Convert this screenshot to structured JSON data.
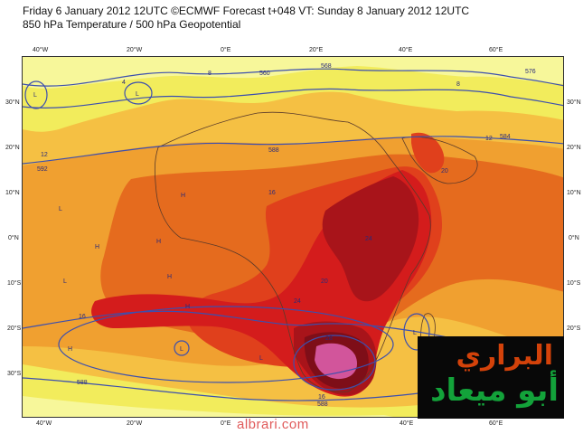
{
  "header": {
    "line1": "Friday 6 January 2012 12UTC ©ECMWF Forecast t+048 VT: Sunday 8 January 2012 12UTC",
    "line2": "850 hPa Temperature / 500 hPa Geopotential"
  },
  "axes": {
    "longitudes": [
      "40°W",
      "20°W",
      "0°E",
      "20°E",
      "40°E",
      "60°E"
    ],
    "latitudes": [
      "30°N",
      "20°N",
      "10°N",
      "0°N",
      "10°S",
      "20°S",
      "30°S"
    ]
  },
  "contour_labels": {
    "temperature": [
      "4",
      "8",
      "8",
      "12",
      "12",
      "16",
      "16",
      "16",
      "20",
      "20",
      "24",
      "24",
      "28",
      "12",
      "16",
      "16",
      "16",
      "20",
      "20",
      "24"
    ],
    "geopotential": [
      "588",
      "576",
      "568",
      "560",
      "584",
      "576",
      "568",
      "588",
      "592",
      "584",
      "576",
      "588"
    ]
  },
  "pressure_marks": [
    "L",
    "L",
    "H",
    "H",
    "H",
    "L",
    "L",
    "H",
    "H",
    "L",
    "L",
    "L",
    "H"
  ],
  "footer": {
    "url": "albrari.com"
  },
  "logo": {
    "line1": "البراري",
    "line2": "أبو ميعاد"
  },
  "colors": {
    "cold_yellow": "#f7f79a",
    "yellow": "#f2ec5c",
    "light_orange": "#f5c043",
    "orange": "#f0a030",
    "dark_orange": "#e56b1e",
    "red_orange": "#e0401c",
    "red": "#d41c1c",
    "dark_red": "#a8141a",
    "maroon": "#7e0e18",
    "magenta": "#d2559b",
    "contour_blue": "#3c4fae"
  }
}
